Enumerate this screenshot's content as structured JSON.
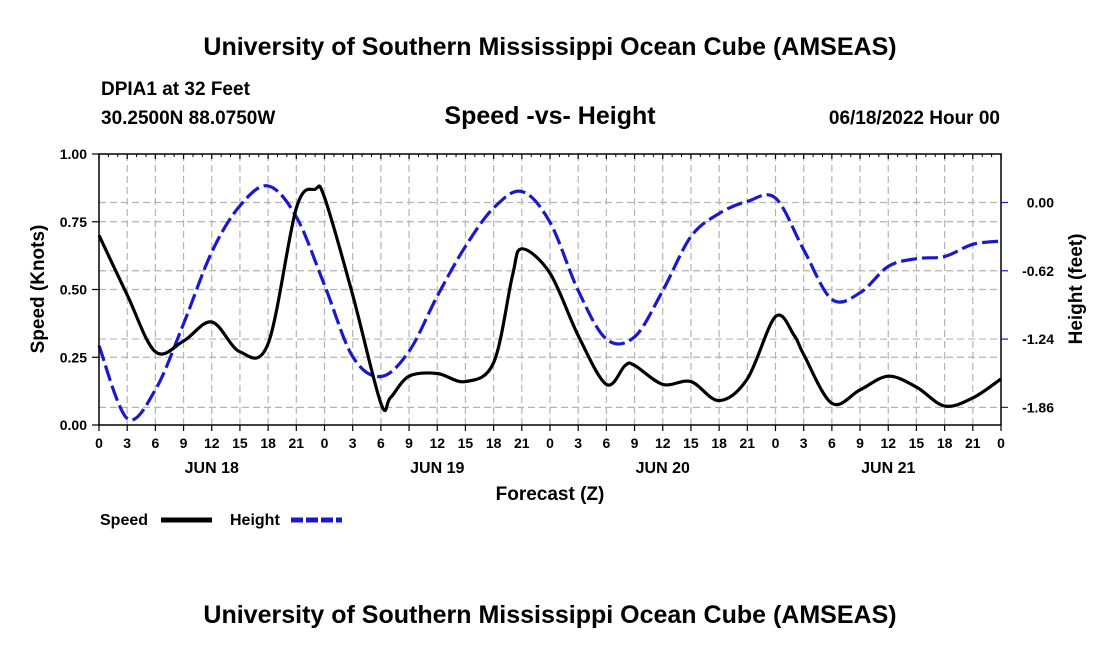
{
  "page_title_top": "University of Southern Mississippi Ocean Cube (AMSEAS)",
  "page_title_bottom": "University of Southern Mississippi Ocean Cube (AMSEAS)",
  "station_line": "DPIA1 at 32 Feet",
  "coords_line": "30.2500N  88.0750W",
  "run_time": "06/18/2022 Hour 00",
  "colors": {
    "speed": "#000000",
    "height": "#1a1acc",
    "grid": "#b4b4b4"
  },
  "chart_data": {
    "type": "line",
    "title": "Speed -vs- Height",
    "xlabel": "Forecast (Z)",
    "ylabel": "Speed (Knots)",
    "y2label": "Height (feet)",
    "xlim": [
      0,
      96
    ],
    "ylim": [
      0,
      1.0
    ],
    "y2lim": [
      -2.02,
      0.44
    ],
    "x_tick_labels": [
      "0",
      "3",
      "6",
      "9",
      "12",
      "15",
      "18",
      "21",
      "0",
      "3",
      "6",
      "9",
      "12",
      "15",
      "18",
      "21",
      "0",
      "3",
      "6",
      "9",
      "12",
      "15",
      "18",
      "21",
      "0",
      "3",
      "6",
      "9",
      "12",
      "15",
      "18",
      "21",
      "0"
    ],
    "y_ticks": [
      {
        "value": 0.0,
        "label": "0.00"
      },
      {
        "value": 0.25,
        "label": "0.25"
      },
      {
        "value": 0.5,
        "label": "0.50"
      },
      {
        "value": 0.75,
        "label": "0.75"
      },
      {
        "value": 1.0,
        "label": "1.00"
      }
    ],
    "y2_ticks": [
      {
        "value": 0.0,
        "label": "0.00"
      },
      {
        "value": -0.62,
        "label": "-0.62"
      },
      {
        "value": -1.24,
        "label": "-1.24"
      },
      {
        "value": -1.86,
        "label": "-1.86"
      }
    ],
    "date_labels": [
      {
        "hour": 12,
        "label": "JUN 18"
      },
      {
        "hour": 36,
        "label": "JUN 19"
      },
      {
        "hour": 60,
        "label": "JUN 20"
      },
      {
        "hour": 84,
        "label": "JUN 21"
      }
    ],
    "series": [
      {
        "name": "Speed",
        "axis": "left",
        "style": "solid",
        "x": [
          0,
          3,
          6,
          9,
          12,
          15,
          18,
          21,
          23,
          24,
          27,
          30,
          31,
          33,
          36,
          39,
          42,
          44,
          45,
          48,
          51,
          54,
          56,
          57,
          60,
          63,
          66,
          69,
          72,
          74,
          75,
          78,
          81,
          84,
          87,
          90,
          93,
          96
        ],
        "y": [
          0.7,
          0.48,
          0.27,
          0.31,
          0.38,
          0.27,
          0.3,
          0.8,
          0.87,
          0.84,
          0.48,
          0.08,
          0.1,
          0.18,
          0.19,
          0.16,
          0.23,
          0.55,
          0.65,
          0.56,
          0.33,
          0.15,
          0.22,
          0.22,
          0.15,
          0.16,
          0.09,
          0.17,
          0.4,
          0.33,
          0.26,
          0.08,
          0.13,
          0.18,
          0.14,
          0.07,
          0.1,
          0.17
        ]
      },
      {
        "name": "Height",
        "axis": "right",
        "style": "dashed",
        "x": [
          0,
          3,
          6,
          9,
          12,
          15,
          18,
          21,
          24,
          27,
          30,
          33,
          36,
          39,
          42,
          45,
          48,
          51,
          54,
          57,
          60,
          63,
          66,
          69,
          72,
          75,
          78,
          81,
          84,
          87,
          90,
          93,
          96
        ],
        "y": [
          -1.3,
          -1.96,
          -1.7,
          -1.1,
          -0.45,
          -0.03,
          0.15,
          -0.13,
          -0.75,
          -1.4,
          -1.58,
          -1.35,
          -0.85,
          -0.4,
          -0.05,
          0.1,
          -0.18,
          -0.8,
          -1.24,
          -1.22,
          -0.8,
          -0.31,
          -0.1,
          0.01,
          0.04,
          -0.43,
          -0.88,
          -0.82,
          -0.58,
          -0.51,
          -0.49,
          -0.38,
          -0.35
        ]
      }
    ],
    "legend": [
      {
        "label": "Speed",
        "series": "Speed"
      },
      {
        "label": "Height",
        "series": "Height"
      }
    ]
  }
}
